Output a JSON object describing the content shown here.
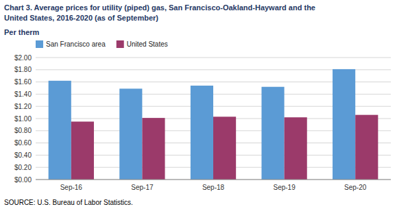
{
  "chart_data": {
    "type": "bar",
    "title": "Chart 3. Average prices for utility (piped) gas, San Francisco-Oakland-Hayward and the",
    "subtitle": "United States, 2016-2020  (as of September)",
    "ylabel": "Per therm",
    "source": "SOURCE: U.S. Bureau of Labor Statistics.",
    "categories": [
      "Sep-16",
      "Sep-17",
      "Sep-18",
      "Sep-19",
      "Sep-20"
    ],
    "series": [
      {
        "name": "San Francisco area",
        "color": "#5B9BD5",
        "values": [
          1.62,
          1.49,
          1.54,
          1.52,
          1.81
        ]
      },
      {
        "name": "United States",
        "color": "#9B3A6A",
        "values": [
          0.95,
          1.01,
          1.03,
          1.02,
          1.06
        ]
      }
    ],
    "ylim": [
      0,
      2.0
    ],
    "yticks": [
      {
        "value": 0.0,
        "label": "$0.00"
      },
      {
        "value": 0.2,
        "label": "$0.20"
      },
      {
        "value": 0.4,
        "label": "$0.40"
      },
      {
        "value": 0.6,
        "label": "$0.60"
      },
      {
        "value": 0.8,
        "label": "$0.80"
      },
      {
        "value": 1.0,
        "label": "$1.00"
      },
      {
        "value": 1.2,
        "label": "$1.20"
      },
      {
        "value": 1.4,
        "label": "$1.40"
      },
      {
        "value": 1.6,
        "label": "$1.60"
      },
      {
        "value": 1.8,
        "label": "$1.80"
      },
      {
        "value": 2.0,
        "label": "$2.00"
      }
    ],
    "grid": true,
    "legend": "top"
  }
}
